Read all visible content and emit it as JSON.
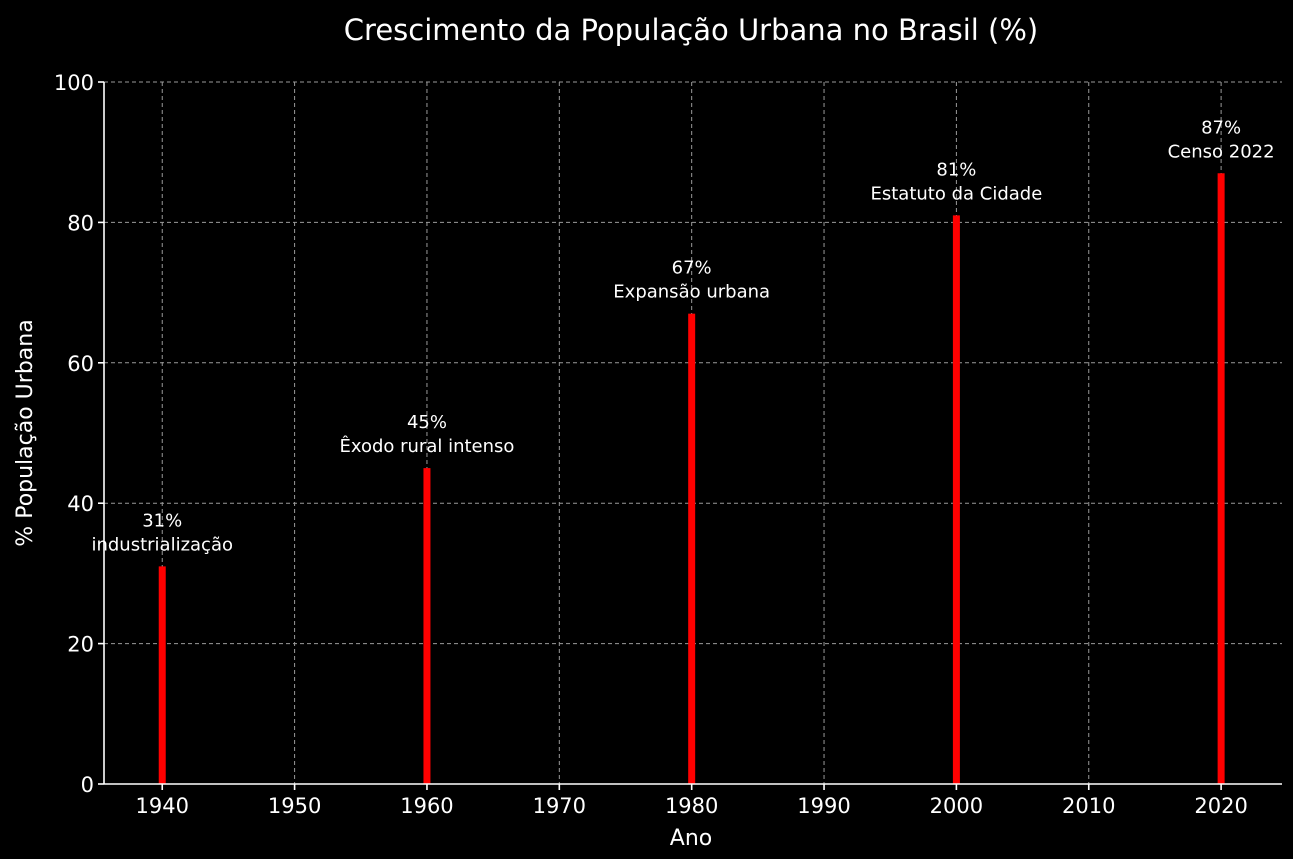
{
  "chart_data": {
    "type": "bar",
    "title": "Crescimento da População Urbana no Brasil (%)",
    "xlabel": "Ano",
    "ylabel": "% População Urbana",
    "xlim": [
      1935.6,
      2024.6
    ],
    "ylim": [
      0,
      100
    ],
    "xticks": [
      1940,
      1950,
      1960,
      1970,
      1980,
      1990,
      2000,
      2010,
      2020
    ],
    "yticks": [
      0,
      20,
      40,
      60,
      80,
      100
    ],
    "grid": true,
    "bar_color": "#ff0000",
    "x": [
      1940,
      1960,
      1980,
      2000,
      2020
    ],
    "values": [
      31,
      45,
      67,
      81,
      87
    ],
    "value_labels": [
      "31%",
      "45%",
      "67%",
      "81%",
      "87%"
    ],
    "annotations": [
      "industrialização",
      "Êxodo rural intenso",
      "Expansão urbana",
      "Estatuto da Cidade",
      "Censo 2022"
    ]
  }
}
